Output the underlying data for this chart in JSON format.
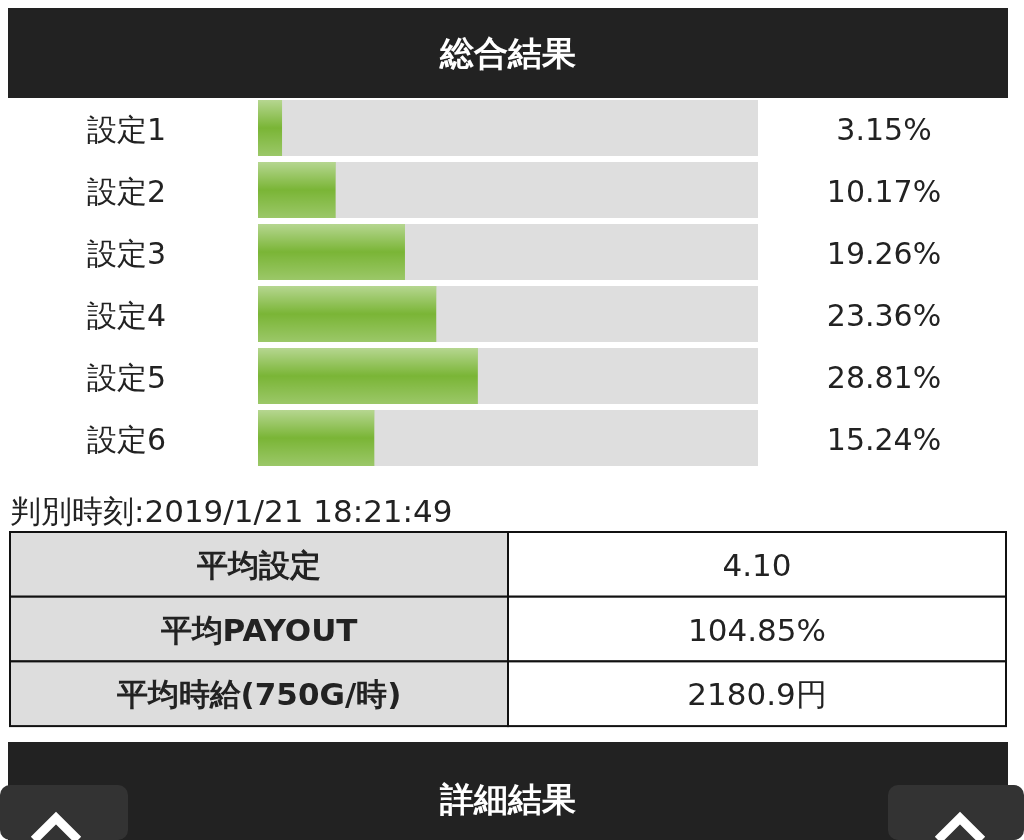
{
  "chart_data": [
    {
      "type": "bar",
      "orientation": "horizontal",
      "title": "総合結果",
      "categories": [
        "設定1",
        "設定2",
        "設定3",
        "設定4",
        "設定5",
        "設定6"
      ],
      "values": [
        3.15,
        10.17,
        19.26,
        23.36,
        28.81,
        15.24
      ],
      "color": "#7ab536",
      "value_labels": [
        "3.15%",
        "10.17%",
        "19.26%",
        "23.36%",
        "28.81%",
        "15.24%"
      ],
      "annotations": [
        "判別時刻:2019/1/21 18:21:49"
      ]
    },
    {
      "type": "other",
      "categories": [
        "平均設定",
        "平均PAYOUT",
        "平均時給(750G/時)"
      ],
      "value_labels": [
        "4.10",
        "104.85%",
        "2180.9円"
      ],
      "annotations": [
        "詳細結果"
      ]
    }
  ]
}
